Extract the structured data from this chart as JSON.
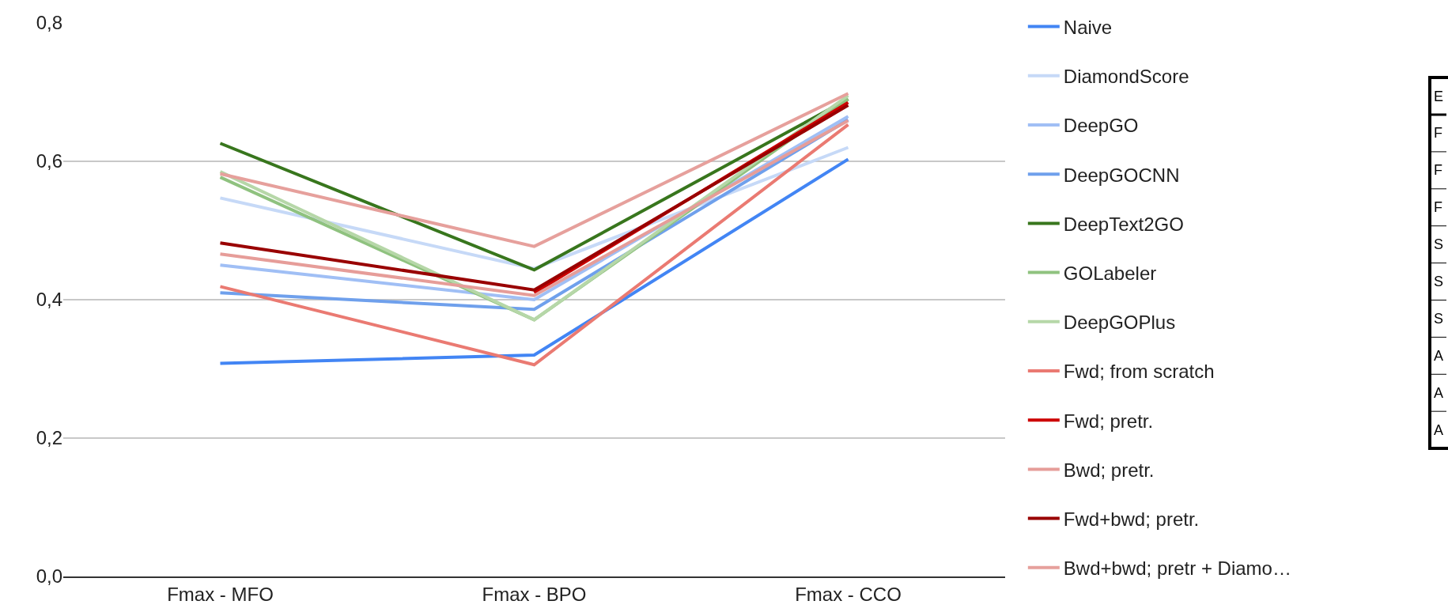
{
  "chart_data": {
    "type": "line",
    "categories": [
      "Fmax - MFO",
      "Fmax - BPO",
      "Fmax - CCO"
    ],
    "ylim": [
      0,
      0.8
    ],
    "yticks": [
      {
        "value": 0,
        "label": "0,0"
      },
      {
        "value": 0.2,
        "label": "0,2"
      },
      {
        "value": 0.4,
        "label": "0,4"
      },
      {
        "value": 0.6,
        "label": "0,6"
      },
      {
        "value": 0.8,
        "label": "0,8"
      }
    ],
    "grid": "y",
    "legend": "right",
    "marker": "none",
    "line_style": "solid",
    "series": [
      {
        "name": "Naive",
        "color": "#4285f4",
        "values": [
          0.308,
          0.32,
          0.603
        ]
      },
      {
        "name": "DiamondScore",
        "color": "#c6d9f7",
        "values": [
          0.547,
          0.445,
          0.62
        ]
      },
      {
        "name": "DeepGO",
        "color": "#a0bff5",
        "values": [
          0.45,
          0.4,
          0.665
        ]
      },
      {
        "name": "DeepGOCNN",
        "color": "#6fa0ec",
        "values": [
          0.41,
          0.386,
          0.66
        ]
      },
      {
        "name": "DeepText2GO",
        "color": "#38761d",
        "values": [
          0.626,
          0.443,
          0.69
        ]
      },
      {
        "name": "GOLabeler",
        "color": "#8fc27f",
        "values": [
          0.577,
          0.371,
          0.69
        ]
      },
      {
        "name": "DeepGOPlus",
        "color": "#b6d7a8",
        "values": [
          0.585,
          0.371,
          0.695
        ]
      },
      {
        "name": "Fwd; from scratch",
        "color": "#ea7a72",
        "values": [
          0.419,
          0.306,
          0.653
        ]
      },
      {
        "name": "Fwd; pretr.",
        "color": "#cc0000",
        "values": [
          null,
          0.41,
          0.685
        ]
      },
      {
        "name": "Bwd; pretr.",
        "color": "#e69d99",
        "values": [
          0.466,
          0.406,
          0.659
        ]
      },
      {
        "name": "Fwd+bwd; pretr.",
        "color": "#990000",
        "values": [
          0.482,
          0.414,
          0.681
        ]
      },
      {
        "name": "Bwd+bwd; pretr + Diamo…",
        "color": "#e6a09c",
        "values": [
          0.582,
          0.477,
          0.698
        ]
      }
    ],
    "annotations": [
      "E",
      "F",
      "F",
      "F",
      "S",
      "S",
      "S",
      "A",
      "A",
      "A"
    ]
  }
}
